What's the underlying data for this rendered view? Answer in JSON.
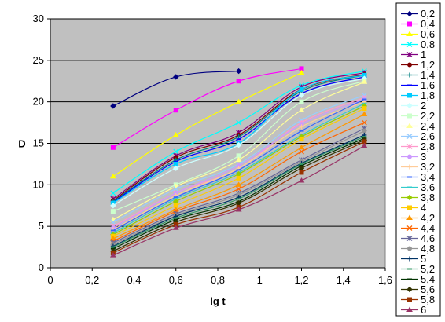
{
  "chart_data": {
    "type": "line",
    "xlabel": "lg t",
    "ylabel": "D",
    "xlim": [
      0,
      1.6
    ],
    "ylim": [
      0,
      30
    ],
    "x_ticks": [
      "0",
      "0,2",
      "0,4",
      "0,6",
      "0,8",
      "1",
      "1,2",
      "1,4",
      "1,6"
    ],
    "y_ticks": [
      "0",
      "5",
      "10",
      "15",
      "20",
      "25",
      "30"
    ],
    "x_tick_values": [
      0,
      0.2,
      0.4,
      0.6,
      0.8,
      1.0,
      1.2,
      1.4,
      1.6
    ],
    "y_tick_values": [
      0,
      5,
      10,
      15,
      20,
      25,
      30
    ],
    "grid": "horizontal",
    "plot_background": "#c0c0c0",
    "legend_position": "right",
    "x": [
      0.3,
      0.6,
      0.9,
      1.2,
      1.5
    ],
    "series": [
      {
        "name": "0,2",
        "color": "#000080",
        "marker": "diamond",
        "values": [
          19.5,
          23.0,
          23.7,
          null,
          null
        ]
      },
      {
        "name": "0,4",
        "color": "#ff00ff",
        "marker": "square",
        "values": [
          14.5,
          19.0,
          22.5,
          24.0,
          null
        ]
      },
      {
        "name": "0,6",
        "color": "#ffff00",
        "marker": "triangle",
        "values": [
          11.0,
          16.0,
          20.0,
          23.5,
          null
        ]
      },
      {
        "name": "0,8",
        "color": "#00ffff",
        "marker": "x",
        "values": [
          9.0,
          14.0,
          17.5,
          22.0,
          23.7
        ]
      },
      {
        "name": "1",
        "color": "#800080",
        "marker": "star",
        "values": [
          8.3,
          13.5,
          16.3,
          21.8,
          23.5
        ]
      },
      {
        "name": "1,2",
        "color": "#800000",
        "marker": "circle",
        "values": [
          8.1,
          13.3,
          16.0,
          21.5,
          23.3
        ]
      },
      {
        "name": "1,4",
        "color": "#008080",
        "marker": "plus",
        "values": [
          8.0,
          13.0,
          15.8,
          21.3,
          23.2
        ]
      },
      {
        "name": "1,6",
        "color": "#0000ff",
        "marker": "dash",
        "values": [
          7.9,
          12.8,
          15.5,
          21.0,
          23.0
        ]
      },
      {
        "name": "1,8",
        "color": "#00ccff",
        "marker": "square",
        "values": [
          7.8,
          12.5,
          15.0,
          21.5,
          23.2
        ]
      },
      {
        "name": "2",
        "color": "#ccffff",
        "marker": "diamond",
        "values": [
          7.5,
          12.0,
          14.8,
          20.8,
          22.8
        ]
      },
      {
        "name": "2,2",
        "color": "#ccffcc",
        "marker": "square",
        "values": [
          6.8,
          10.0,
          13.5,
          20.0,
          22.5
        ]
      },
      {
        "name": "2,4",
        "color": "#ffff99",
        "marker": "triangle",
        "values": [
          5.8,
          9.8,
          13.0,
          19.0,
          22.4
        ]
      },
      {
        "name": "2,6",
        "color": "#99ccff",
        "marker": "x",
        "values": [
          5.5,
          9.5,
          12.5,
          17.8,
          20.8
        ]
      },
      {
        "name": "2,8",
        "color": "#ff99cc",
        "marker": "star",
        "values": [
          5.0,
          9.0,
          12.0,
          17.5,
          20.5
        ]
      },
      {
        "name": "3",
        "color": "#cc99ff",
        "marker": "circle",
        "values": [
          4.8,
          9.0,
          12.3,
          17.3,
          20.3
        ]
      },
      {
        "name": "3,2",
        "color": "#ffcc99",
        "marker": "plus",
        "values": [
          4.6,
          8.7,
          12.0,
          17.0,
          20.0
        ]
      },
      {
        "name": "3,4",
        "color": "#3366ff",
        "marker": "dash",
        "values": [
          4.5,
          8.5,
          11.8,
          16.5,
          20.3
        ]
      },
      {
        "name": "3,6",
        "color": "#33cccc",
        "marker": "dash",
        "values": [
          4.2,
          8.3,
          11.5,
          16.0,
          19.8
        ]
      },
      {
        "name": "3,8",
        "color": "#99cc00",
        "marker": "diamond",
        "values": [
          4.0,
          8.0,
          11.3,
          15.8,
          19.5
        ]
      },
      {
        "name": "4",
        "color": "#ffcc00",
        "marker": "square",
        "values": [
          3.8,
          7.5,
          10.8,
          15.5,
          19.2
        ]
      },
      {
        "name": "4,2",
        "color": "#ff9900",
        "marker": "triangle",
        "values": [
          3.5,
          7.0,
          10.0,
          14.5,
          18.5
        ]
      },
      {
        "name": "4,4",
        "color": "#ff6600",
        "marker": "x",
        "values": [
          3.2,
          6.8,
          9.5,
          14.0,
          17.5
        ]
      },
      {
        "name": "4,6",
        "color": "#666699",
        "marker": "star",
        "values": [
          3.0,
          6.5,
          9.0,
          13.0,
          16.8
        ]
      },
      {
        "name": "4,8",
        "color": "#969696",
        "marker": "circle",
        "values": [
          2.8,
          6.3,
          8.8,
          12.8,
          16.5
        ]
      },
      {
        "name": "5",
        "color": "#003366",
        "marker": "plus",
        "values": [
          2.6,
          6.2,
          8.5,
          12.6,
          16.0
        ]
      },
      {
        "name": "5,2",
        "color": "#339966",
        "marker": "dash",
        "values": [
          2.5,
          6.0,
          8.3,
          12.5,
          15.8
        ]
      },
      {
        "name": "5,4",
        "color": "#003300",
        "marker": "dash",
        "values": [
          2.3,
          5.8,
          8.0,
          12.3,
          15.6
        ]
      },
      {
        "name": "5,6",
        "color": "#333300",
        "marker": "diamond",
        "values": [
          2.0,
          5.5,
          7.8,
          12.0,
          15.4
        ]
      },
      {
        "name": "5,8",
        "color": "#993300",
        "marker": "square",
        "values": [
          1.8,
          5.2,
          7.3,
          11.5,
          15.2
        ]
      },
      {
        "name": "6",
        "color": "#993366",
        "marker": "triangle",
        "values": [
          1.5,
          4.8,
          7.0,
          10.5,
          14.7
        ]
      }
    ]
  }
}
